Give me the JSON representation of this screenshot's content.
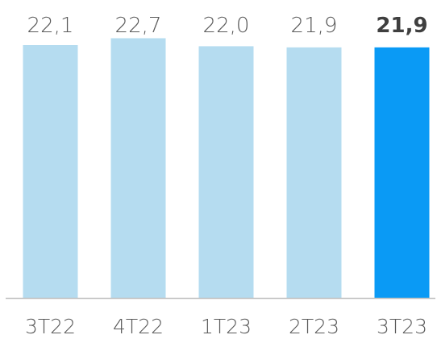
{
  "chart_data": {
    "type": "bar",
    "categories": [
      "3T22",
      "4T22",
      "1T23",
      "2T23",
      "3T23"
    ],
    "values": [
      22.1,
      22.7,
      22.0,
      21.9,
      21.9
    ],
    "value_labels": [
      "22,1",
      "22,7",
      "22,0",
      "21,9",
      "21,9"
    ],
    "highlight_index": 4,
    "title": "",
    "xlabel": "",
    "ylabel": "",
    "ylim": [
      0,
      23.5
    ],
    "grid": false,
    "legend": "none"
  },
  "colors": {
    "bar": "#b5dcf0",
    "bar_highlight": "#0a9af5",
    "baseline": "#bfbfbf",
    "text": "#5a5a5a",
    "text_highlight": "#3f3f3f"
  }
}
